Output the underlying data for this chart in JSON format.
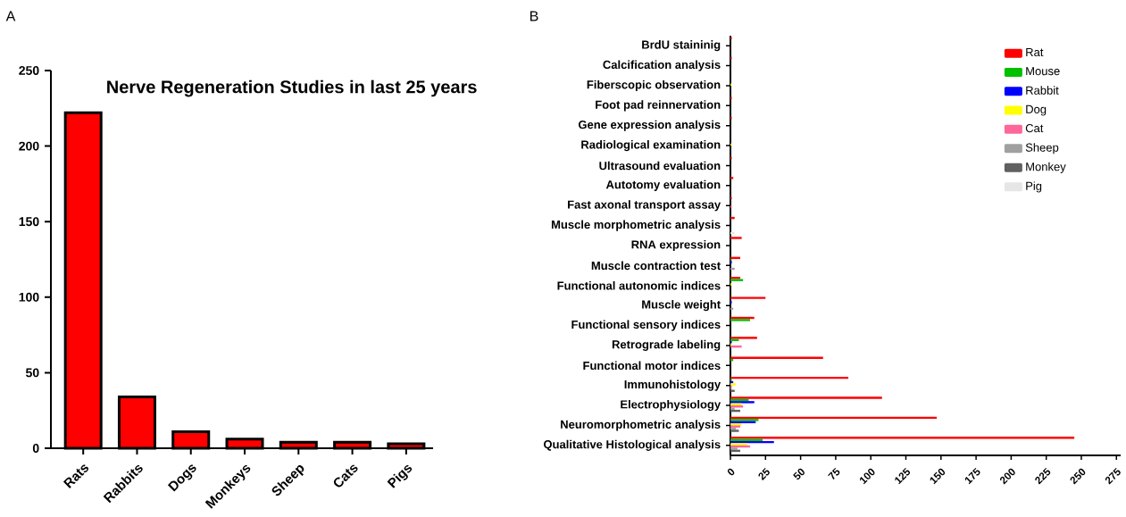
{
  "chart_data": [
    {
      "type": "bar",
      "title": "Nerve Regeneration Studies in last 25 years",
      "annotations": [
        "A"
      ],
      "categories": [
        "Rats",
        "Rabbits",
        "Dogs",
        "Monkeys",
        "Sheep",
        "Cats",
        "Pigs"
      ],
      "values": [
        222,
        34,
        11,
        6,
        4,
        4,
        3
      ],
      "color": "#ff0000",
      "ylim": [
        0,
        250
      ],
      "yticks": [
        0,
        50,
        100,
        150,
        200,
        250
      ]
    },
    {
      "type": "bar",
      "orientation": "horizontal",
      "annotations": [
        "B"
      ],
      "legend": "top right",
      "categories": [
        "BrdU staininig",
        "Calcification analysis",
        "Fiberscopic observation",
        "Foot pad reinnervation",
        "Gene expression analysis",
        "Radiological examination",
        "Ultrasound evaluation",
        "Autotomy evaluation",
        "Fast axonal transport assay",
        "Muscle morphometric analysis",
        "RNA expression",
        "Muscle contraction test",
        "Functional autonomic indices",
        "Muscle weight",
        "Functional sensory indices",
        "Retrograde labeling",
        "Functional motor indices",
        "Immunohistology",
        "Electrophysiology",
        "Neuromorphometric analysis",
        "Qualitative Histological analysis"
      ],
      "series": [
        {
          "name": "Rat",
          "color": "#ff0000",
          "values": [
            1,
            1,
            0,
            1,
            1,
            0,
            1,
            2,
            1,
            3,
            8,
            7,
            7,
            25,
            17,
            19,
            66,
            84,
            108,
            147,
            245
          ]
        },
        {
          "name": "Mouse",
          "color": "#00c000",
          "values": [
            0,
            0,
            0,
            0,
            0,
            0,
            0,
            0,
            0,
            0,
            0,
            1,
            9,
            0,
            14,
            6,
            2,
            1,
            13,
            20,
            23
          ]
        },
        {
          "name": "Rabbit",
          "color": "#0000ff",
          "values": [
            0,
            0,
            0,
            0,
            0,
            0,
            0,
            0,
            0,
            0,
            0,
            1,
            0,
            1,
            0,
            1,
            0,
            2,
            17,
            18,
            31
          ]
        },
        {
          "name": "Dog",
          "color": "#ffff00",
          "values": [
            0,
            0,
            1,
            0,
            0,
            1,
            0,
            0,
            0,
            0,
            0,
            0,
            1,
            0,
            0,
            1,
            0,
            4,
            8,
            8,
            12
          ]
        },
        {
          "name": "Cat",
          "color": "#ff6699",
          "values": [
            0,
            0,
            0,
            0,
            0,
            0,
            0,
            0,
            1,
            0,
            0,
            0,
            0,
            0,
            0,
            8,
            0,
            1,
            9,
            7,
            14
          ]
        },
        {
          "name": "Sheep",
          "color": "#a0a0a0",
          "values": [
            0,
            0,
            0,
            0,
            0,
            0,
            0,
            0,
            0,
            0,
            0,
            3,
            0,
            2,
            0,
            0,
            0,
            1,
            3,
            4,
            5
          ]
        },
        {
          "name": "Monkey",
          "color": "#606060",
          "values": [
            0,
            0,
            0,
            0,
            0,
            0,
            0,
            0,
            0,
            0,
            0,
            0,
            0,
            0,
            0,
            0,
            0,
            3,
            7,
            6,
            7
          ]
        },
        {
          "name": "Pig",
          "color": "#e6e6e6",
          "values": [
            0,
            0,
            0,
            0,
            0,
            0,
            0,
            0,
            0,
            3,
            0,
            0,
            0,
            0,
            0,
            0,
            0,
            0,
            0,
            0,
            0
          ]
        }
      ],
      "xlim": [
        0,
        278
      ],
      "xticks": [
        0,
        25,
        50,
        75,
        100,
        125,
        150,
        175,
        200,
        225,
        250,
        275
      ]
    }
  ]
}
